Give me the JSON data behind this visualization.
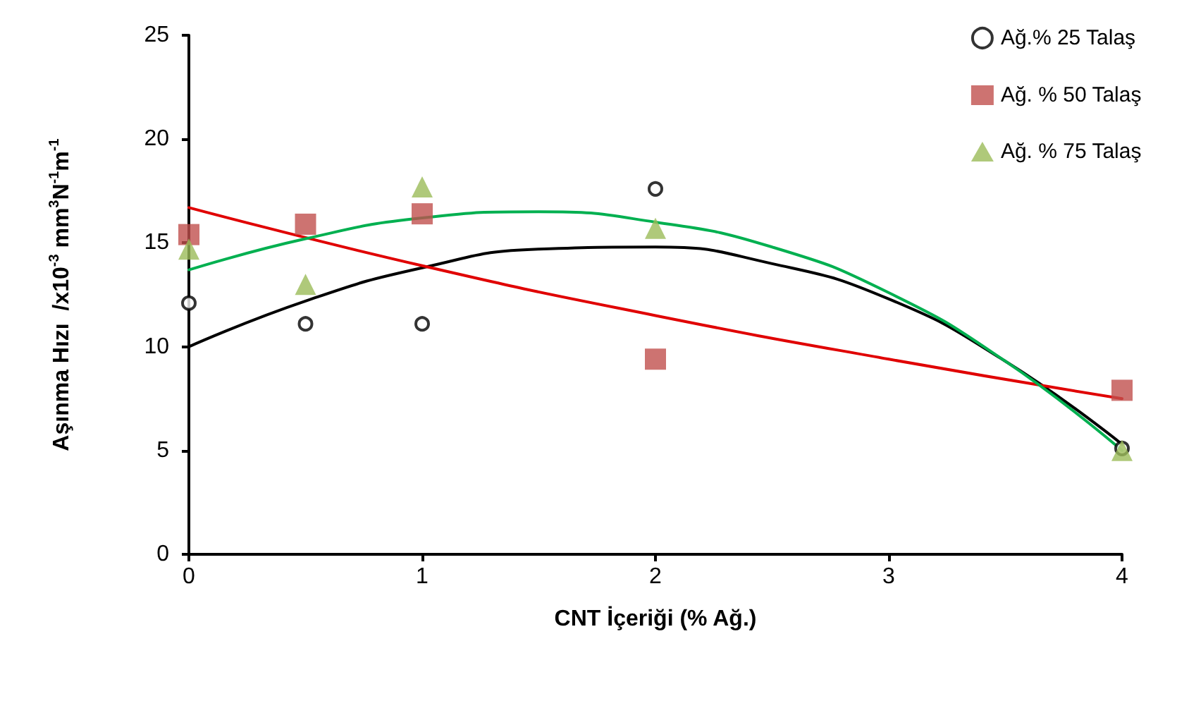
{
  "chart_data": {
    "type": "scatter",
    "xlabel": "CNT İçeriği (% Ağ.)",
    "ylabel": "Aşınma Hızı  /x10$^{-3}$ mm$^{3}$N$^{-1}$m$^{-1}$",
    "x": [
      0,
      0.5,
      1,
      2,
      4
    ],
    "series": [
      {
        "name": "Ağ.% 25 Talaş",
        "color": "#000000",
        "marker": "circle",
        "values": [
          12.1,
          11.1,
          11.1,
          17.6,
          5.1
        ]
      },
      {
        "name": "Ağ. % 50 Talaş",
        "color": "#c0504d",
        "marker": "square",
        "values": [
          15.4,
          15.9,
          16.4,
          9.4,
          7.9
        ]
      },
      {
        "name": "Ağ. % 75 Talaş",
        "color": "#9bbb59",
        "marker": "triangle",
        "values": [
          14.7,
          13.0,
          17.7,
          15.7,
          5.0
        ]
      },
      {
        "type": "line",
        "color": "#000000",
        "x": [
          0,
          0.5,
          1,
          1.5,
          2,
          2.5,
          3,
          3.5,
          4
        ],
        "values": [
          10.0,
          12.2,
          13.8,
          14.7,
          14.8,
          14.0,
          12.3,
          9.3,
          5.3
        ]
      },
      {
        "type": "line",
        "color": "#e00000",
        "x": [
          0,
          1,
          2,
          3,
          4
        ],
        "values": [
          16.7,
          13.9,
          11.5,
          9.4,
          7.5
        ]
      },
      {
        "type": "line",
        "color": "#00b050",
        "x": [
          0,
          0.5,
          1,
          1.5,
          2,
          2.5,
          3,
          3.5,
          4
        ],
        "values": [
          13.7,
          15.2,
          16.2,
          16.5,
          16.0,
          14.8,
          12.6,
          9.3,
          5.0
        ]
      }
    ],
    "xlim": [
      0,
      4
    ],
    "xticks": [
      0,
      1,
      2,
      3,
      4
    ],
    "ylim": [
      0,
      25
    ],
    "yticks": [
      0,
      5,
      10,
      15,
      20,
      25
    ],
    "grid": false,
    "legend": "top right",
    "line_style": "solid"
  }
}
